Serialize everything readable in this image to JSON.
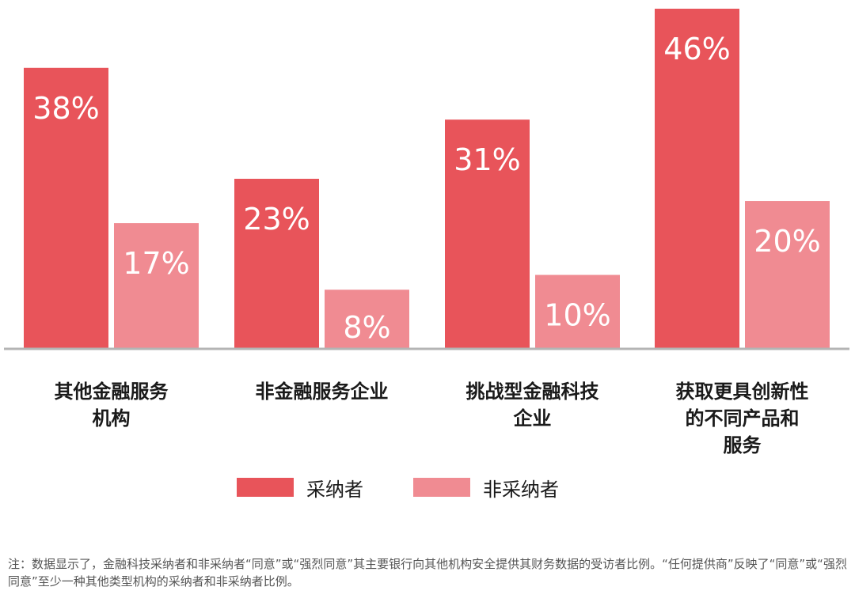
{
  "chart_data": {
    "type": "bar",
    "title": "",
    "categories": [
      "其他金融服务\n机构",
      "非金融服务企业",
      "挑战型金融科技\n企业",
      "获取更具创新性\n的不同产品和\n服务"
    ],
    "series": [
      {
        "name": "采纳者",
        "values": [
          38,
          23,
          31,
          46
        ],
        "labels": [
          "38%",
          "23%",
          "31%",
          "46%"
        ],
        "color": "#e8545a"
      },
      {
        "name": "非采纳者",
        "values": [
          17,
          8,
          10,
          20
        ],
        "labels": [
          "17%",
          "8%",
          "10%",
          "20%"
        ],
        "color": "#f08b92"
      }
    ],
    "ylim": [
      0,
      46
    ],
    "grid": false,
    "legend_position": "bottom",
    "xlabel": "",
    "ylabel": "",
    "baseline_color": "#b4b4b4"
  },
  "legend": {
    "adopters": "采纳者",
    "non_adopters": "非采纳者"
  },
  "footnote": "注：数据显示了，金融科技采纳者和非采纳者“同意”或“强烈同意”其主要银行向其他机构安全提供其财务数据的受访者比例。“任何提供商”反映了“同意”或“强烈同意”至少一种其他类型机构的采纳者和非采纳者比例。"
}
